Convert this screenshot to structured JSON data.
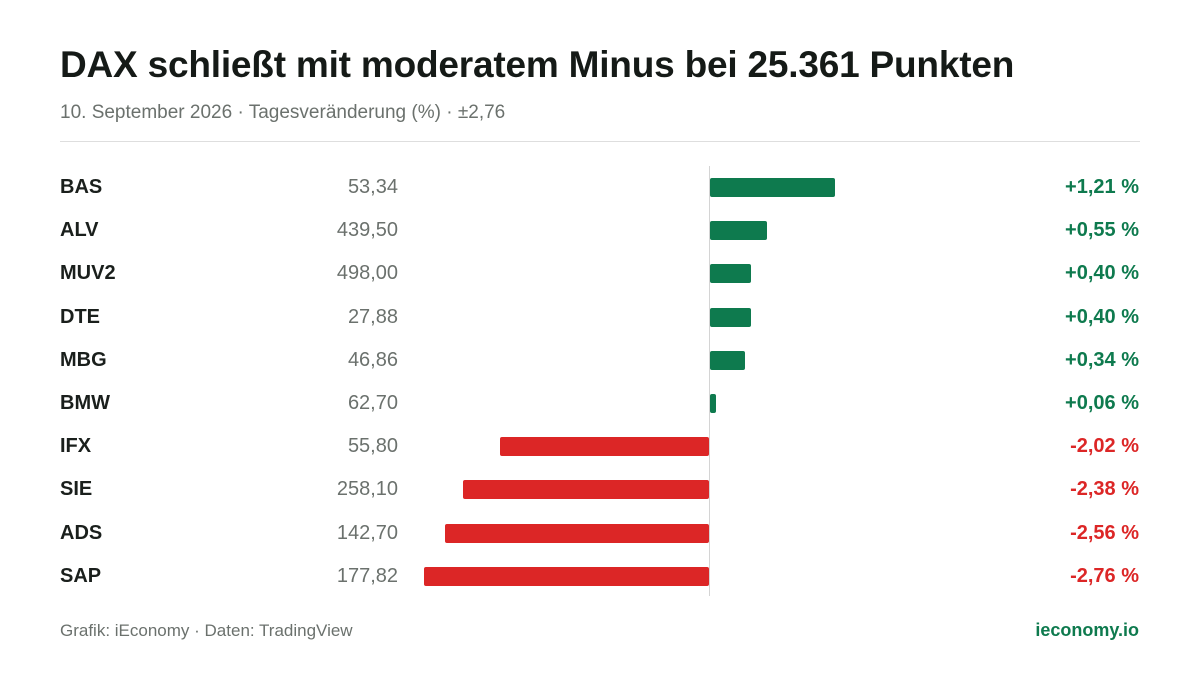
{
  "header": {
    "title": "DAX schließt mit moderatem Minus bei 25.361 Punkten",
    "subtitle": "10. September 2026 · Tagesveränderung (%) · ±2,76"
  },
  "footer": {
    "source": "Grafik: iEconomy · Daten: TradingView",
    "brand": "ieconomy.io"
  },
  "colors": {
    "positive": "#0e7a4e",
    "negative": "#dc2626"
  },
  "chart_data": {
    "type": "bar",
    "orientation": "horizontal",
    "title": "DAX schließt mit moderatem Minus bei 25.361 Punkten",
    "subtitle": "10. September 2026 · Tagesveränderung (%) · ±2,76",
    "xlim": [
      -2.76,
      2.76
    ],
    "grid": false,
    "rows": [
      {
        "ticker": "BAS",
        "price": "53,34",
        "change": 1.21,
        "change_label": "+1,21 %"
      },
      {
        "ticker": "ALV",
        "price": "439,50",
        "change": 0.55,
        "change_label": "+0,55 %"
      },
      {
        "ticker": "MUV2",
        "price": "498,00",
        "change": 0.4,
        "change_label": "+0,40 %"
      },
      {
        "ticker": "DTE",
        "price": "27,88",
        "change": 0.4,
        "change_label": "+0,40 %"
      },
      {
        "ticker": "MBG",
        "price": "46,86",
        "change": 0.34,
        "change_label": "+0,34 %"
      },
      {
        "ticker": "BMW",
        "price": "62,70",
        "change": 0.06,
        "change_label": "+0,06 %"
      },
      {
        "ticker": "IFX",
        "price": "55,80",
        "change": -2.02,
        "change_label": "-2,02 %"
      },
      {
        "ticker": "SIE",
        "price": "258,10",
        "change": -2.38,
        "change_label": "-2,38 %"
      },
      {
        "ticker": "ADS",
        "price": "142,70",
        "change": -2.56,
        "change_label": "-2,56 %"
      },
      {
        "ticker": "SAP",
        "price": "177,82",
        "change": -2.76,
        "change_label": "-2,76 %"
      }
    ]
  }
}
